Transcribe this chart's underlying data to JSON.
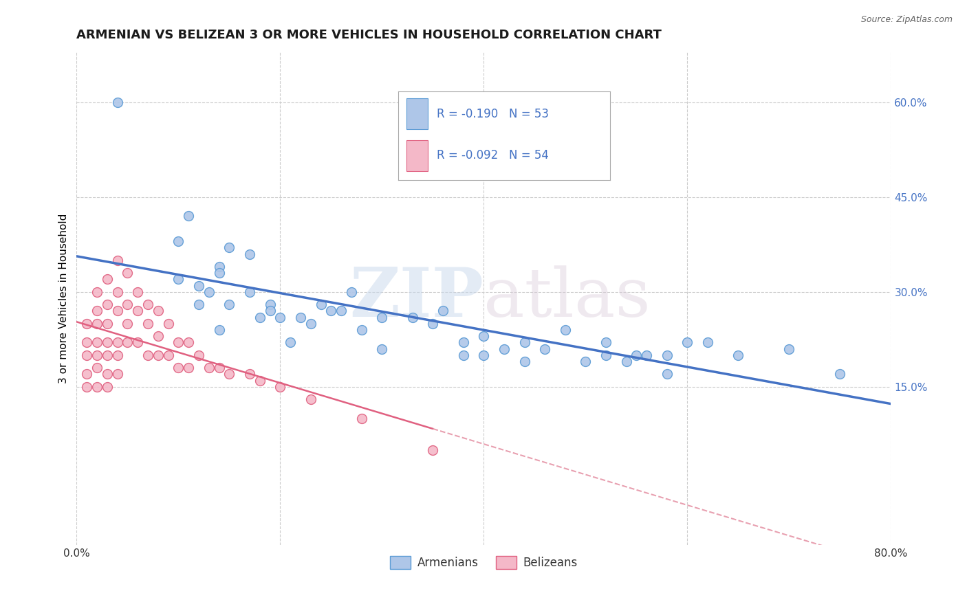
{
  "title": "ARMENIAN VS BELIZEAN 3 OR MORE VEHICLES IN HOUSEHOLD CORRELATION CHART",
  "source_text": "Source: ZipAtlas.com",
  "ylabel": "3 or more Vehicles in Household",
  "xlim": [
    0.0,
    0.8
  ],
  "ylim": [
    -0.1,
    0.68
  ],
  "right_ytick_labels": [
    "15.0%",
    "30.0%",
    "45.0%",
    "60.0%"
  ],
  "right_ytick_vals": [
    0.15,
    0.3,
    0.45,
    0.6
  ],
  "grid_color": "#cccccc",
  "background_color": "#ffffff",
  "armenian_color": "#aec6e8",
  "armenian_edge_color": "#5b9bd5",
  "belizean_color": "#f4b8c8",
  "belizean_edge_color": "#e06080",
  "armenian_R": -0.19,
  "armenian_N": 53,
  "belizean_R": -0.092,
  "belizean_N": 54,
  "armenian_line_color": "#4472c4",
  "belizean_solid_color": "#e06080",
  "belizean_dash_color": "#e8a0b0",
  "watermark_zip": "ZIP",
  "watermark_atlas": "atlas",
  "title_fontsize": 13,
  "axis_label_fontsize": 11,
  "armenians_scatter_x": [
    0.04,
    0.11,
    0.15,
    0.14,
    0.17,
    0.1,
    0.12,
    0.12,
    0.14,
    0.17,
    0.19,
    0.1,
    0.13,
    0.15,
    0.18,
    0.2,
    0.14,
    0.19,
    0.21,
    0.22,
    0.25,
    0.24,
    0.26,
    0.23,
    0.27,
    0.3,
    0.28,
    0.33,
    0.35,
    0.3,
    0.36,
    0.38,
    0.4,
    0.38,
    0.42,
    0.44,
    0.46,
    0.48,
    0.52,
    0.56,
    0.4,
    0.44,
    0.5,
    0.52,
    0.55,
    0.58,
    0.6,
    0.54,
    0.58,
    0.62,
    0.65,
    0.7,
    0.75
  ],
  "armenians_scatter_y": [
    0.6,
    0.42,
    0.37,
    0.34,
    0.36,
    0.32,
    0.31,
    0.28,
    0.33,
    0.3,
    0.28,
    0.38,
    0.3,
    0.28,
    0.26,
    0.26,
    0.24,
    0.27,
    0.22,
    0.26,
    0.27,
    0.28,
    0.27,
    0.25,
    0.3,
    0.26,
    0.24,
    0.26,
    0.25,
    0.21,
    0.27,
    0.22,
    0.23,
    0.2,
    0.21,
    0.22,
    0.21,
    0.24,
    0.22,
    0.2,
    0.2,
    0.19,
    0.19,
    0.2,
    0.2,
    0.2,
    0.22,
    0.19,
    0.17,
    0.22,
    0.2,
    0.21,
    0.17
  ],
  "belizeans_scatter_x": [
    0.01,
    0.01,
    0.01,
    0.01,
    0.01,
    0.02,
    0.02,
    0.02,
    0.02,
    0.02,
    0.02,
    0.02,
    0.03,
    0.03,
    0.03,
    0.03,
    0.03,
    0.03,
    0.03,
    0.04,
    0.04,
    0.04,
    0.04,
    0.04,
    0.04,
    0.05,
    0.05,
    0.05,
    0.05,
    0.06,
    0.06,
    0.06,
    0.07,
    0.07,
    0.07,
    0.08,
    0.08,
    0.08,
    0.09,
    0.09,
    0.1,
    0.1,
    0.11,
    0.11,
    0.12,
    0.13,
    0.14,
    0.15,
    0.17,
    0.18,
    0.2,
    0.23,
    0.28,
    0.35
  ],
  "belizeans_scatter_y": [
    0.25,
    0.22,
    0.2,
    0.17,
    0.15,
    0.3,
    0.27,
    0.25,
    0.22,
    0.2,
    0.18,
    0.15,
    0.32,
    0.28,
    0.25,
    0.22,
    0.2,
    0.17,
    0.15,
    0.35,
    0.3,
    0.27,
    0.22,
    0.2,
    0.17,
    0.33,
    0.28,
    0.25,
    0.22,
    0.3,
    0.27,
    0.22,
    0.28,
    0.25,
    0.2,
    0.27,
    0.23,
    0.2,
    0.25,
    0.2,
    0.22,
    0.18,
    0.22,
    0.18,
    0.2,
    0.18,
    0.18,
    0.17,
    0.17,
    0.16,
    0.15,
    0.13,
    0.1,
    0.05
  ]
}
